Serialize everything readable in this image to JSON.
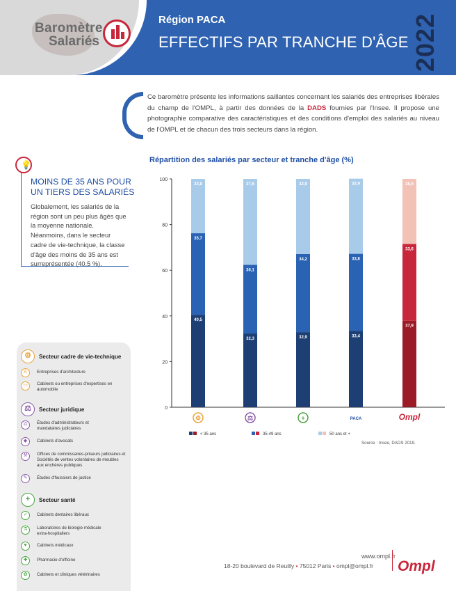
{
  "header": {
    "logo_line1": "Baromètre",
    "logo_line2": "Salariés",
    "region": "Région PACA",
    "title": "EFFECTIFS PAR TRANCHE D'ÂGE",
    "year": "2022"
  },
  "intro": {
    "text_before": "Ce baromètre présente les informations saillantes concernant les salariés des entreprises libérales du champ de l'OMPL, à partir des données de la ",
    "bold": "DADS",
    "text_after": " fournies par l'Insee. Il propose une photographie comparative des caractéristiques et des conditions d'emploi des salariés au niveau de l'OMPL et de chacun des trois secteurs dans la région."
  },
  "key_fact": {
    "title": "MOINS DE 35 ANS POUR UN TIERS DES SALARIÉS",
    "text": "Globalement, les salariés de la région sont un peu plus âgés que la moyenne nationale. Néanmoins, dans le secteur cadre de vie-technique, la classe d'âge des moins de 35 ans est surreprésentée (40,5 %)."
  },
  "sidebar": {
    "sections": [
      {
        "title": "Secteur cadre de vie-technique",
        "icon": "compass-icon",
        "items": [
          "Entreprises d'architecture",
          "Cabinets ou entreprises d'expertises en automobile"
        ]
      },
      {
        "title": "Secteur juridique",
        "icon": "scales-icon",
        "items": [
          "Études d'administrateurs et mandataires judiciaires",
          "Cabinets d'avocats",
          "Offices de commissaires-priseurs judiciaires et Sociétés de ventes volontaires de meubles aux enchères publiques",
          "Études d'huissiers de justice"
        ]
      },
      {
        "title": "Secteur santé",
        "icon": "medical-cross-icon",
        "items": [
          "Cabinets dentaires libéraux",
          "Laboratoires de biologie médicale extra-hospitaliers",
          "Cabinets médicaux",
          "Pharmacie d'officine",
          "Cabinets et cliniques vétérinaires"
        ]
      }
    ]
  },
  "chart_data": {
    "type": "bar",
    "stacked": true,
    "title": "Répartition des salariés par secteur et tranche d'âge (%)",
    "categories": [
      "Cadre de vie-technique",
      "Juridique",
      "Santé",
      "PACA",
      "OMPL"
    ],
    "category_labels": [
      "",
      "",
      "",
      "PACA",
      "Ompl"
    ],
    "series": [
      {
        "name": "< 35 ans",
        "values": [
          40.5,
          32.3,
          32.9,
          33.4,
          37.9
        ],
        "labels": [
          "40,5",
          "32,3",
          "32,9",
          "33,4",
          "37,9"
        ]
      },
      {
        "name": "35-49 ans",
        "values": [
          35.7,
          30.1,
          34.2,
          33.8,
          33.6
        ],
        "labels": [
          "35,7",
          "30,1",
          "34,2",
          "33,8",
          "33,6"
        ]
      },
      {
        "name": "50 ans et +",
        "values": [
          23.8,
          37.6,
          32.9,
          32.9,
          28.5
        ],
        "labels": [
          "23,8",
          "37,6",
          "32,9",
          "32,9",
          "28,5"
        ]
      }
    ],
    "colors": {
      "blue": [
        "#1d3f73",
        "#2a62b4",
        "#a9cbea"
      ],
      "red": [
        "#9b1b26",
        "#c8263a",
        "#f2c2b7"
      ]
    },
    "ylim": [
      0,
      100
    ],
    "yticks": [
      0,
      20,
      40,
      60,
      80,
      100
    ],
    "legend_position": "bottom",
    "source": "Source : Insee, DADS 2019."
  },
  "footer": {
    "url": "www.ompl.fr",
    "address": "18-20 boulevard de Reuilly",
    "city": "75012 Paris",
    "email": "ompl@ompl.fr",
    "logo": "Ompl"
  }
}
